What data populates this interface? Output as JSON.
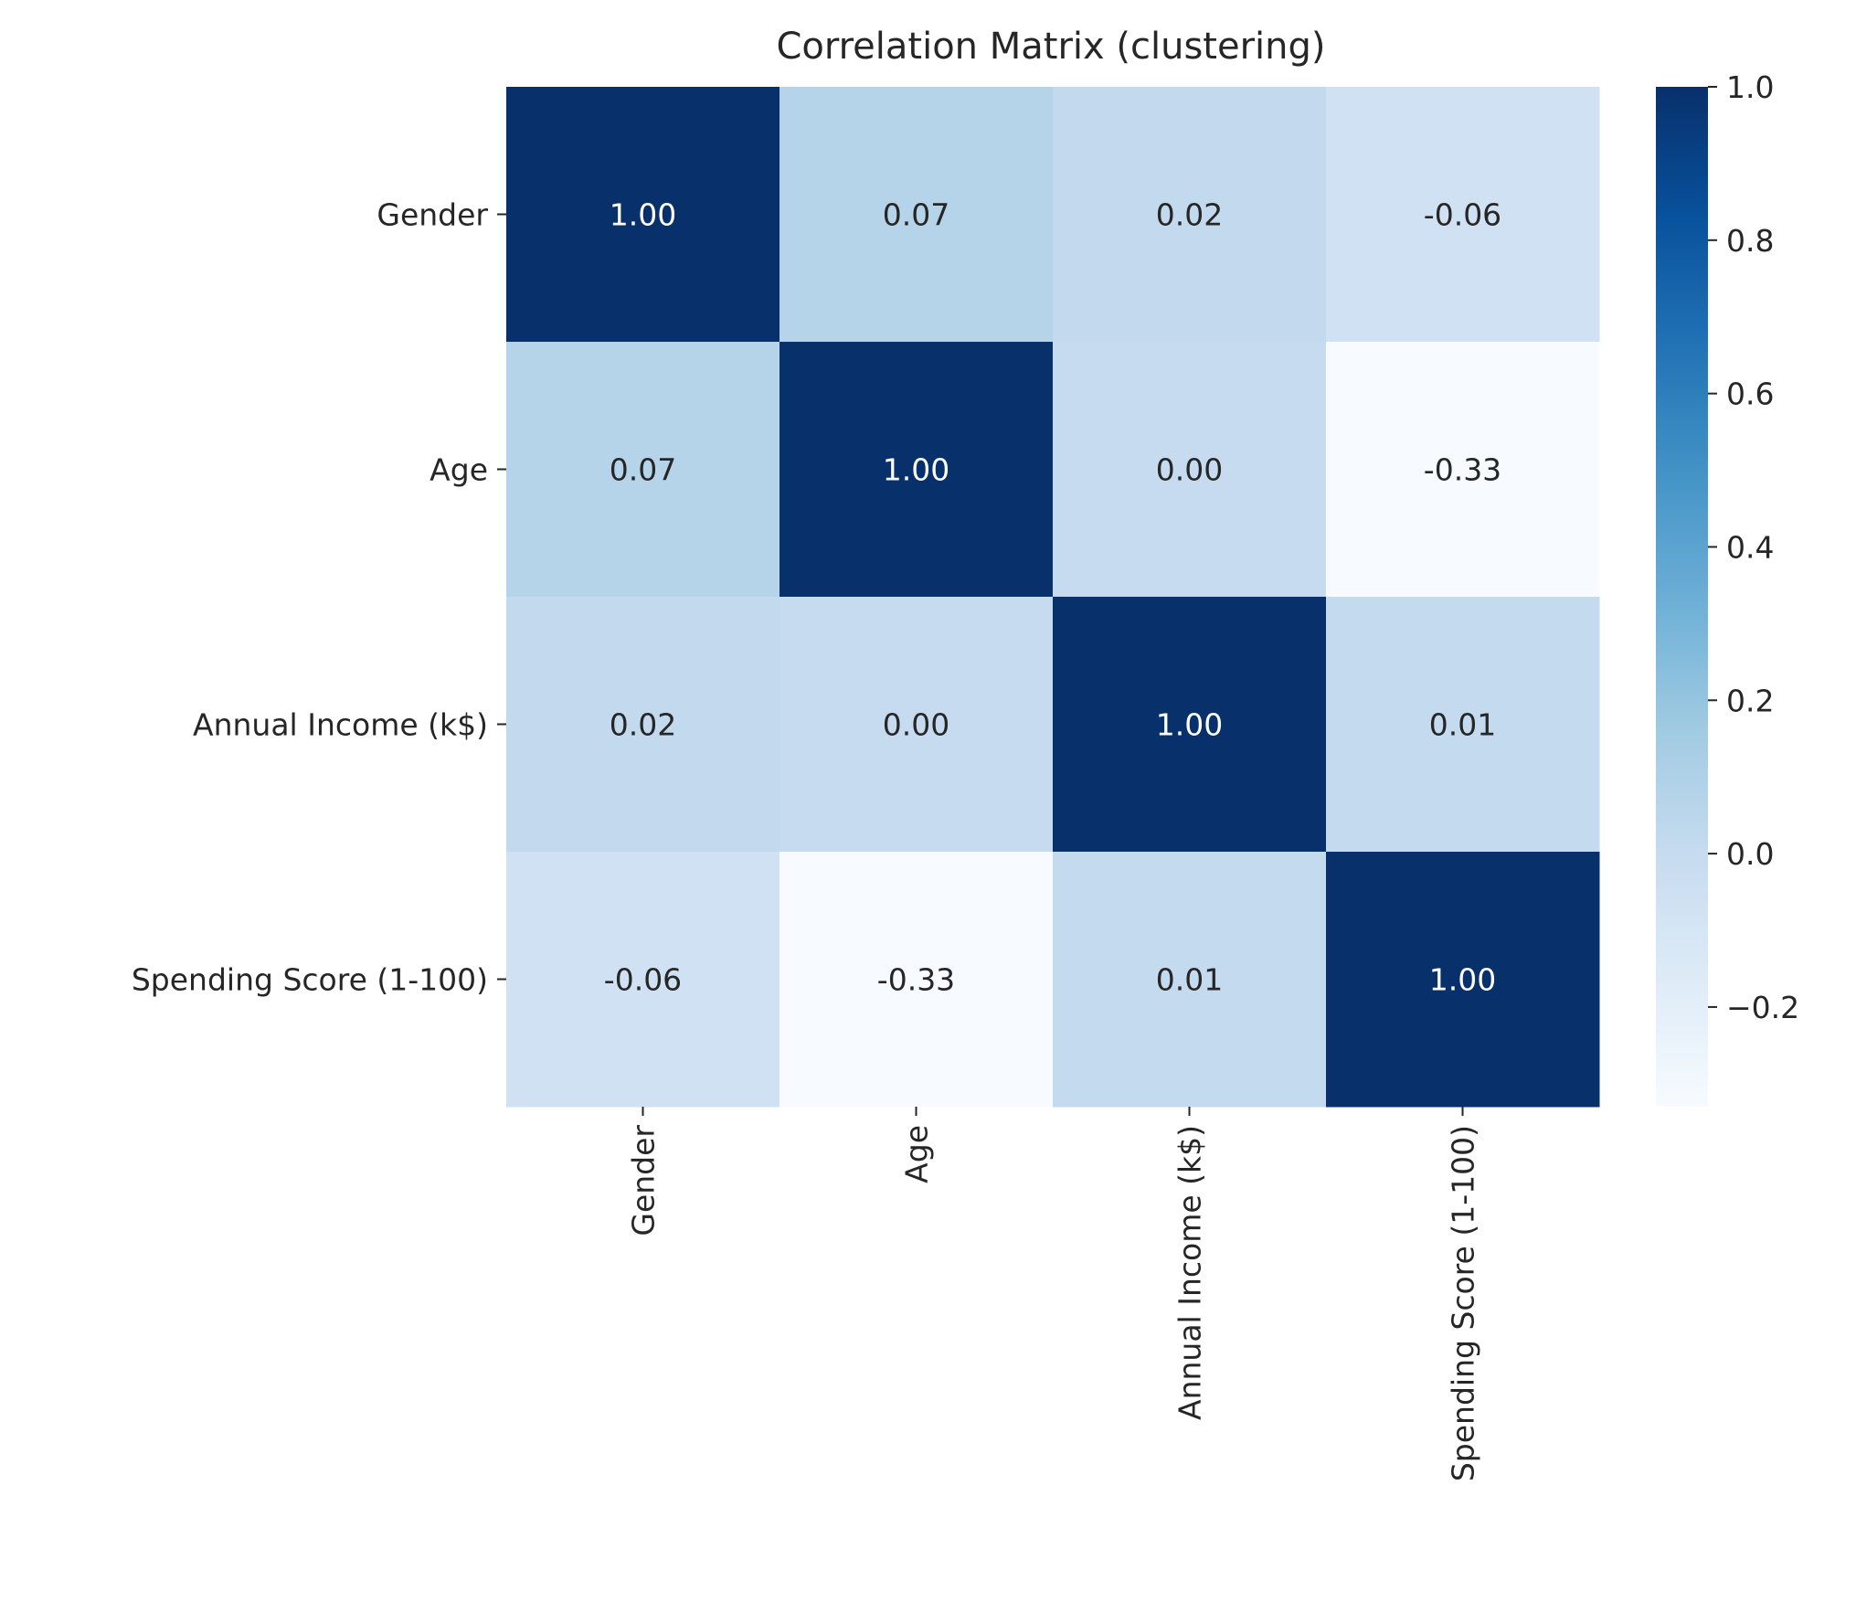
{
  "chart_data": {
    "type": "heatmap",
    "title": "Correlation Matrix (clustering)",
    "rows": [
      "Gender",
      "Age",
      "Annual Income (k$)",
      "Spending Score (1-100)"
    ],
    "columns": [
      "Gender",
      "Age",
      "Annual Income (k$)",
      "Spending Score (1-100)"
    ],
    "values": [
      [
        1.0,
        0.07,
        0.02,
        -0.06
      ],
      [
        0.07,
        1.0,
        0.0,
        -0.33
      ],
      [
        0.02,
        0.0,
        1.0,
        0.01
      ],
      [
        -0.06,
        -0.33,
        0.01,
        1.0
      ]
    ],
    "cell_labels": [
      [
        "1.00",
        "0.07",
        "0.02",
        "-0.06"
      ],
      [
        "0.07",
        "1.00",
        "0.00",
        "-0.33"
      ],
      [
        "0.02",
        "0.00",
        "1.00",
        "0.01"
      ],
      [
        "-0.06",
        "-0.33",
        "0.01",
        "1.00"
      ]
    ],
    "colormap": "Blues",
    "vmin": -0.33,
    "vmax": 1.0,
    "colorbar": {
      "ticks": [
        1.0,
        0.8,
        0.6,
        0.4,
        0.2,
        0.0,
        -0.2
      ],
      "tick_labels": [
        "1.0",
        "0.8",
        "0.6",
        "0.4",
        "0.2",
        "0.0",
        "−0.2"
      ]
    },
    "x_tick_rotation": "vertical",
    "grid": false,
    "legend": "colorbar-right"
  }
}
